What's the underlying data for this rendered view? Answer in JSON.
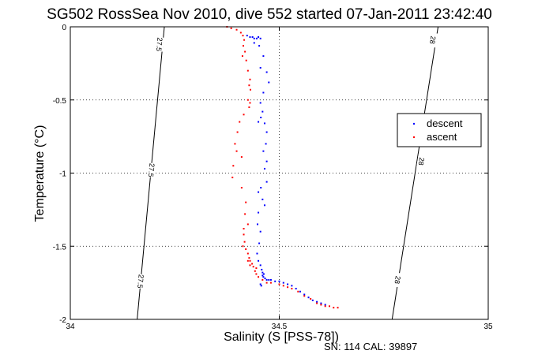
{
  "chart_data": {
    "type": "scatter",
    "title": "SG502 RossSea Nov 2010, dive 552 started 07-Jan-2011 23:42:40",
    "xlabel": "Salinity (S [PSS-78])",
    "ylabel": "Temperature (°C)",
    "xlim": [
      34,
      35
    ],
    "ylim": [
      -2,
      0
    ],
    "x_ticks": [
      "34",
      "34.5",
      "35"
    ],
    "y_ticks": [
      "0",
      "-0.5",
      "-1",
      "-1.5",
      "-2"
    ],
    "grid": true,
    "grid_style": "dotted",
    "legend_position": "right",
    "footer": "SN: 114  CAL: 39897",
    "isopycnals": [
      {
        "label": "27.5",
        "points": [
          [
            34.225,
            0
          ],
          [
            34.16,
            -2
          ]
        ],
        "label_positions": [
          [
            34.213,
            -0.12
          ],
          [
            34.194,
            -0.98
          ],
          [
            34.168,
            -1.74
          ]
        ]
      },
      {
        "label": "28",
        "points": [
          [
            34.88,
            0
          ],
          [
            34.77,
            -2
          ]
        ],
        "label_positions": [
          [
            34.867,
            -0.09
          ],
          [
            34.84,
            -0.92
          ],
          [
            34.783,
            -1.73
          ]
        ]
      }
    ],
    "series": [
      {
        "name": "descent",
        "color": "#0000ff",
        "points": [
          [
            34.423,
            -0.06
          ],
          [
            34.43,
            -0.07
          ],
          [
            34.436,
            -0.07
          ],
          [
            34.44,
            -0.08
          ],
          [
            34.446,
            -0.08
          ],
          [
            34.45,
            -0.07
          ],
          [
            34.455,
            -0.08
          ],
          [
            34.44,
            -0.11
          ],
          [
            34.452,
            -0.13
          ],
          [
            34.462,
            -0.2
          ],
          [
            34.455,
            -0.28
          ],
          [
            34.47,
            -0.31
          ],
          [
            34.475,
            -0.38
          ],
          [
            34.462,
            -0.45
          ],
          [
            34.455,
            -0.52
          ],
          [
            34.46,
            -0.58
          ],
          [
            34.456,
            -0.62
          ],
          [
            34.45,
            -0.65
          ],
          [
            34.465,
            -0.66
          ],
          [
            34.47,
            -0.72
          ],
          [
            34.468,
            -0.8
          ],
          [
            34.462,
            -0.85
          ],
          [
            34.47,
            -0.92
          ],
          [
            34.465,
            -0.97
          ],
          [
            34.47,
            -1.06
          ],
          [
            34.456,
            -1.1
          ],
          [
            34.45,
            -1.13
          ],
          [
            34.46,
            -1.18
          ],
          [
            34.465,
            -1.22
          ],
          [
            34.45,
            -1.27
          ],
          [
            34.448,
            -1.35
          ],
          [
            34.455,
            -1.4
          ],
          [
            34.452,
            -1.48
          ],
          [
            34.447,
            -1.55
          ],
          [
            34.45,
            -1.6
          ],
          [
            34.455,
            -1.63
          ],
          [
            34.458,
            -1.66
          ],
          [
            34.46,
            -1.68
          ],
          [
            34.462,
            -1.71
          ],
          [
            34.466,
            -1.72
          ],
          [
            34.47,
            -1.73
          ],
          [
            34.475,
            -1.73
          ],
          [
            34.48,
            -1.73
          ],
          [
            34.49,
            -1.74
          ],
          [
            34.5,
            -1.74
          ],
          [
            34.51,
            -1.75
          ],
          [
            34.52,
            -1.76
          ],
          [
            34.53,
            -1.77
          ],
          [
            34.54,
            -1.79
          ],
          [
            34.55,
            -1.81
          ],
          [
            34.56,
            -1.83
          ],
          [
            34.57,
            -1.85
          ],
          [
            34.58,
            -1.87
          ],
          [
            34.59,
            -1.88
          ],
          [
            34.6,
            -1.89
          ],
          [
            34.61,
            -1.9
          ],
          [
            34.455,
            -1.76
          ],
          [
            34.457,
            -1.77
          ],
          [
            34.46,
            -1.7
          ],
          [
            34.463,
            -1.69
          ]
        ]
      },
      {
        "name": "ascent",
        "color": "#ff0000",
        "points": [
          [
            34.375,
            0
          ],
          [
            34.385,
            -0.01
          ],
          [
            34.398,
            -0.02
          ],
          [
            34.408,
            -0.04
          ],
          [
            34.413,
            -0.06
          ],
          [
            34.416,
            -0.09
          ],
          [
            34.414,
            -0.13
          ],
          [
            34.418,
            -0.17
          ],
          [
            34.412,
            -0.2
          ],
          [
            34.421,
            -0.23
          ],
          [
            34.425,
            -0.3
          ],
          [
            34.43,
            -0.36
          ],
          [
            34.428,
            -0.4
          ],
          [
            34.431,
            -0.43
          ],
          [
            34.425,
            -0.5
          ],
          [
            34.43,
            -0.52
          ],
          [
            34.428,
            -0.55
          ],
          [
            34.415,
            -0.6
          ],
          [
            34.405,
            -0.65
          ],
          [
            34.4,
            -0.72
          ],
          [
            34.394,
            -0.8
          ],
          [
            34.398,
            -0.85
          ],
          [
            34.41,
            -0.89
          ],
          [
            34.39,
            -0.95
          ],
          [
            34.388,
            -1.03
          ],
          [
            34.41,
            -1.1
          ],
          [
            34.42,
            -1.2
          ],
          [
            34.418,
            -1.28
          ],
          [
            34.425,
            -1.35
          ],
          [
            34.415,
            -1.38
          ],
          [
            34.415,
            -1.42
          ],
          [
            34.417,
            -1.47
          ],
          [
            34.413,
            -1.5
          ],
          [
            34.42,
            -1.52
          ],
          [
            34.425,
            -1.55
          ],
          [
            34.428,
            -1.58
          ],
          [
            34.43,
            -1.6
          ],
          [
            34.435,
            -1.62
          ],
          [
            34.438,
            -1.64
          ],
          [
            34.442,
            -1.67
          ],
          [
            34.445,
            -1.69
          ],
          [
            34.45,
            -1.71
          ],
          [
            34.46,
            -1.73
          ],
          [
            34.47,
            -1.75
          ],
          [
            34.48,
            -1.75
          ],
          [
            34.5,
            -1.76
          ],
          [
            34.51,
            -1.77
          ],
          [
            34.52,
            -1.78
          ],
          [
            34.53,
            -1.79
          ],
          [
            34.545,
            -1.81
          ],
          [
            34.56,
            -1.84
          ],
          [
            34.575,
            -1.86
          ],
          [
            34.59,
            -1.89
          ],
          [
            34.6,
            -1.9
          ],
          [
            34.61,
            -1.91
          ],
          [
            34.62,
            -1.91
          ],
          [
            34.63,
            -1.92
          ],
          [
            34.64,
            -1.92
          ],
          [
            34.425,
            -1.6
          ],
          [
            34.43,
            -1.63
          ],
          [
            34.445,
            -1.65
          ]
        ]
      }
    ]
  }
}
